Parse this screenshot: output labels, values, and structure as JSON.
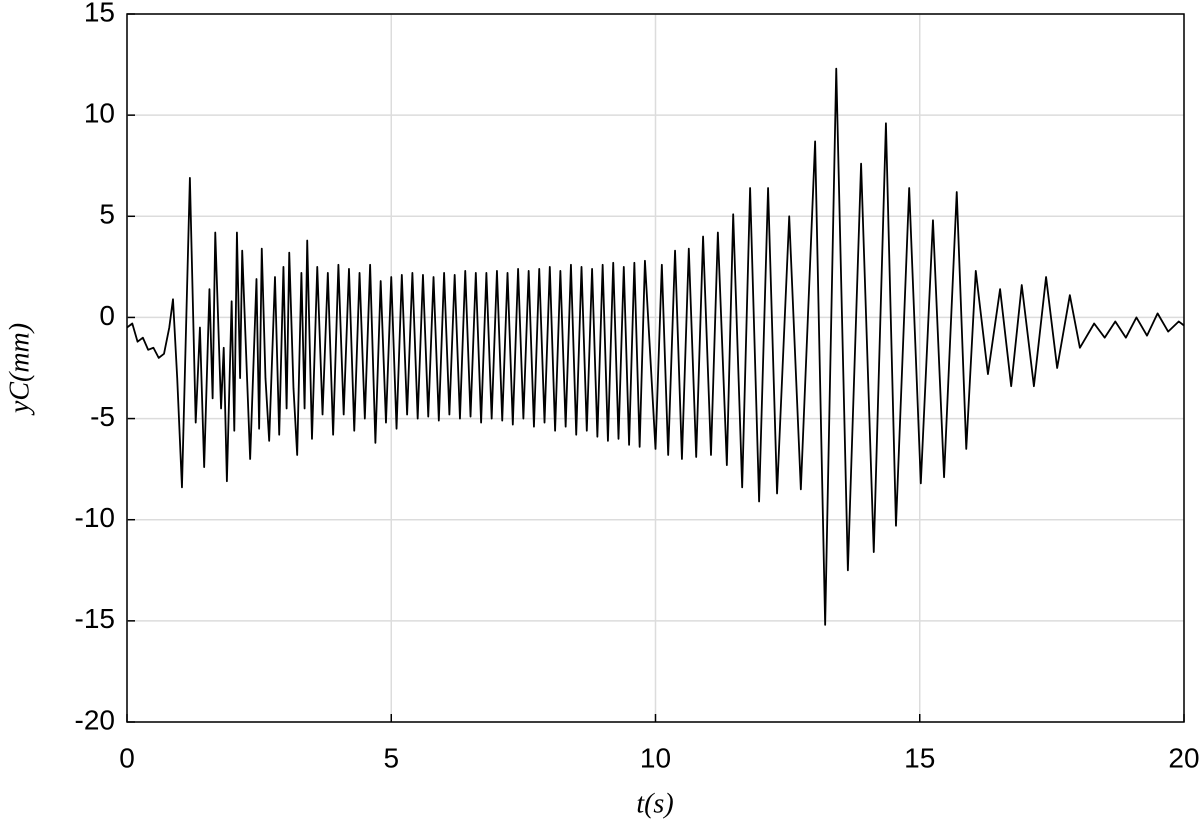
{
  "chart_data": {
    "type": "line",
    "xlabel": "t(s)",
    "ylabel": "yC(mm)",
    "xlim": [
      0,
      20
    ],
    "xticks": [
      0,
      5,
      10,
      15,
      20
    ],
    "ylim": [
      -20,
      15
    ],
    "yticks": [
      -20,
      -15,
      -10,
      -5,
      0,
      5,
      10,
      15
    ],
    "grid": true,
    "color": "#000000",
    "x": [
      0,
      0.1,
      0.2,
      0.3,
      0.4,
      0.5,
      0.6,
      0.7,
      0.8,
      0.87,
      0.95,
      1.04,
      1.19,
      1.3,
      1.38,
      1.46,
      1.56,
      1.62,
      1.67,
      1.78,
      1.83,
      1.89,
      1.98,
      2.03,
      2.08,
      2.14,
      2.18,
      2.33,
      2.45,
      2.5,
      2.55,
      2.62,
      2.69,
      2.8,
      2.88,
      2.96,
      3.02,
      3.07,
      3.15,
      3.22,
      3.3,
      3.36,
      3.41,
      3.5,
      3.6,
      3.7,
      3.8,
      3.9,
      4.0,
      4.1,
      4.2,
      4.3,
      4.4,
      4.5,
      4.6,
      4.7,
      4.8,
      4.9,
      5.0,
      5.1,
      5.2,
      5.3,
      5.4,
      5.5,
      5.6,
      5.7,
      5.8,
      5.9,
      6.0,
      6.1,
      6.2,
      6.3,
      6.4,
      6.5,
      6.6,
      6.7,
      6.8,
      6.9,
      7.0,
      7.1,
      7.2,
      7.3,
      7.4,
      7.5,
      7.6,
      7.7,
      7.8,
      7.9,
      8.0,
      8.1,
      8.2,
      8.3,
      8.4,
      8.5,
      8.6,
      8.7,
      8.8,
      8.9,
      9.0,
      9.1,
      9.2,
      9.3,
      9.4,
      9.5,
      9.6,
      9.7,
      9.8,
      10.0,
      10.12,
      10.24,
      10.37,
      10.5,
      10.63,
      10.77,
      10.9,
      11.05,
      11.18,
      11.35,
      11.47,
      11.64,
      11.79,
      11.96,
      12.13,
      12.3,
      12.53,
      12.75,
      13.02,
      13.21,
      13.42,
      13.64,
      13.89,
      14.13,
      14.36,
      14.55,
      14.8,
      15.02,
      15.25,
      15.46,
      15.7,
      15.88,
      16.06,
      16.29,
      16.52,
      16.73,
      16.93,
      17.16,
      17.39,
      17.6,
      17.84,
      18.03,
      18.3,
      18.5,
      18.7,
      18.9,
      19.1,
      19.3,
      19.5,
      19.7,
      19.9,
      20.0
    ],
    "y": [
      -0.5,
      -0.3,
      -1.2,
      -1.0,
      -1.6,
      -1.5,
      -2.0,
      -1.8,
      -0.5,
      0.9,
      -3,
      -8.4,
      6.9,
      -5.2,
      -0.5,
      -7.4,
      1.4,
      -4,
      4.2,
      -4.5,
      -1.5,
      -8.1,
      0.8,
      -5.6,
      4.2,
      -3,
      3.3,
      -7.0,
      1.9,
      -5.5,
      3.4,
      -3,
      -6.1,
      2.0,
      -5.8,
      2.5,
      -4.5,
      3.2,
      -3.5,
      -6.8,
      2.2,
      -4.5,
      3.8,
      -6.0,
      2.5,
      -4.8,
      2.2,
      -5.8,
      2.6,
      -4.8,
      2.4,
      -5.6,
      2.2,
      -5.0,
      2.6,
      -6.2,
      1.8,
      -5.2,
      2.0,
      -5.5,
      2.1,
      -4.8,
      2.2,
      -5.0,
      2.1,
      -4.9,
      2.0,
      -5.1,
      2.2,
      -4.8,
      2.1,
      -5.0,
      2.3,
      -4.9,
      2.2,
      -5.2,
      2.2,
      -5.0,
      2.3,
      -5.1,
      2.2,
      -5.3,
      2.4,
      -5.0,
      2.3,
      -5.4,
      2.4,
      -5.2,
      2.5,
      -5.6,
      2.3,
      -5.4,
      2.6,
      -5.8,
      2.5,
      -5.6,
      2.4,
      -5.9,
      2.6,
      -6.1,
      2.7,
      -6.0,
      2.5,
      -6.3,
      2.7,
      -6.4,
      2.8,
      -6.5,
      2.6,
      -6.8,
      3.3,
      -7.0,
      3.4,
      -6.9,
      4.0,
      -6.8,
      4.2,
      -7.3,
      5.1,
      -8.4,
      6.4,
      -9.1,
      6.4,
      -8.7,
      5.0,
      -8.5,
      8.7,
      -15.2,
      12.3,
      -12.5,
      7.6,
      -11.6,
      9.6,
      -10.3,
      6.4,
      -8.2,
      4.8,
      -7.9,
      6.2,
      -6.5,
      2.3,
      -2.8,
      1.4,
      -3.4,
      1.6,
      -3.4,
      2.0,
      -2.5,
      1.1,
      -1.5,
      -0.3,
      -1.0,
      -0.2,
      -1.0,
      0.0,
      -0.9,
      0.2,
      -0.7,
      -0.2,
      -0.4
    ]
  }
}
